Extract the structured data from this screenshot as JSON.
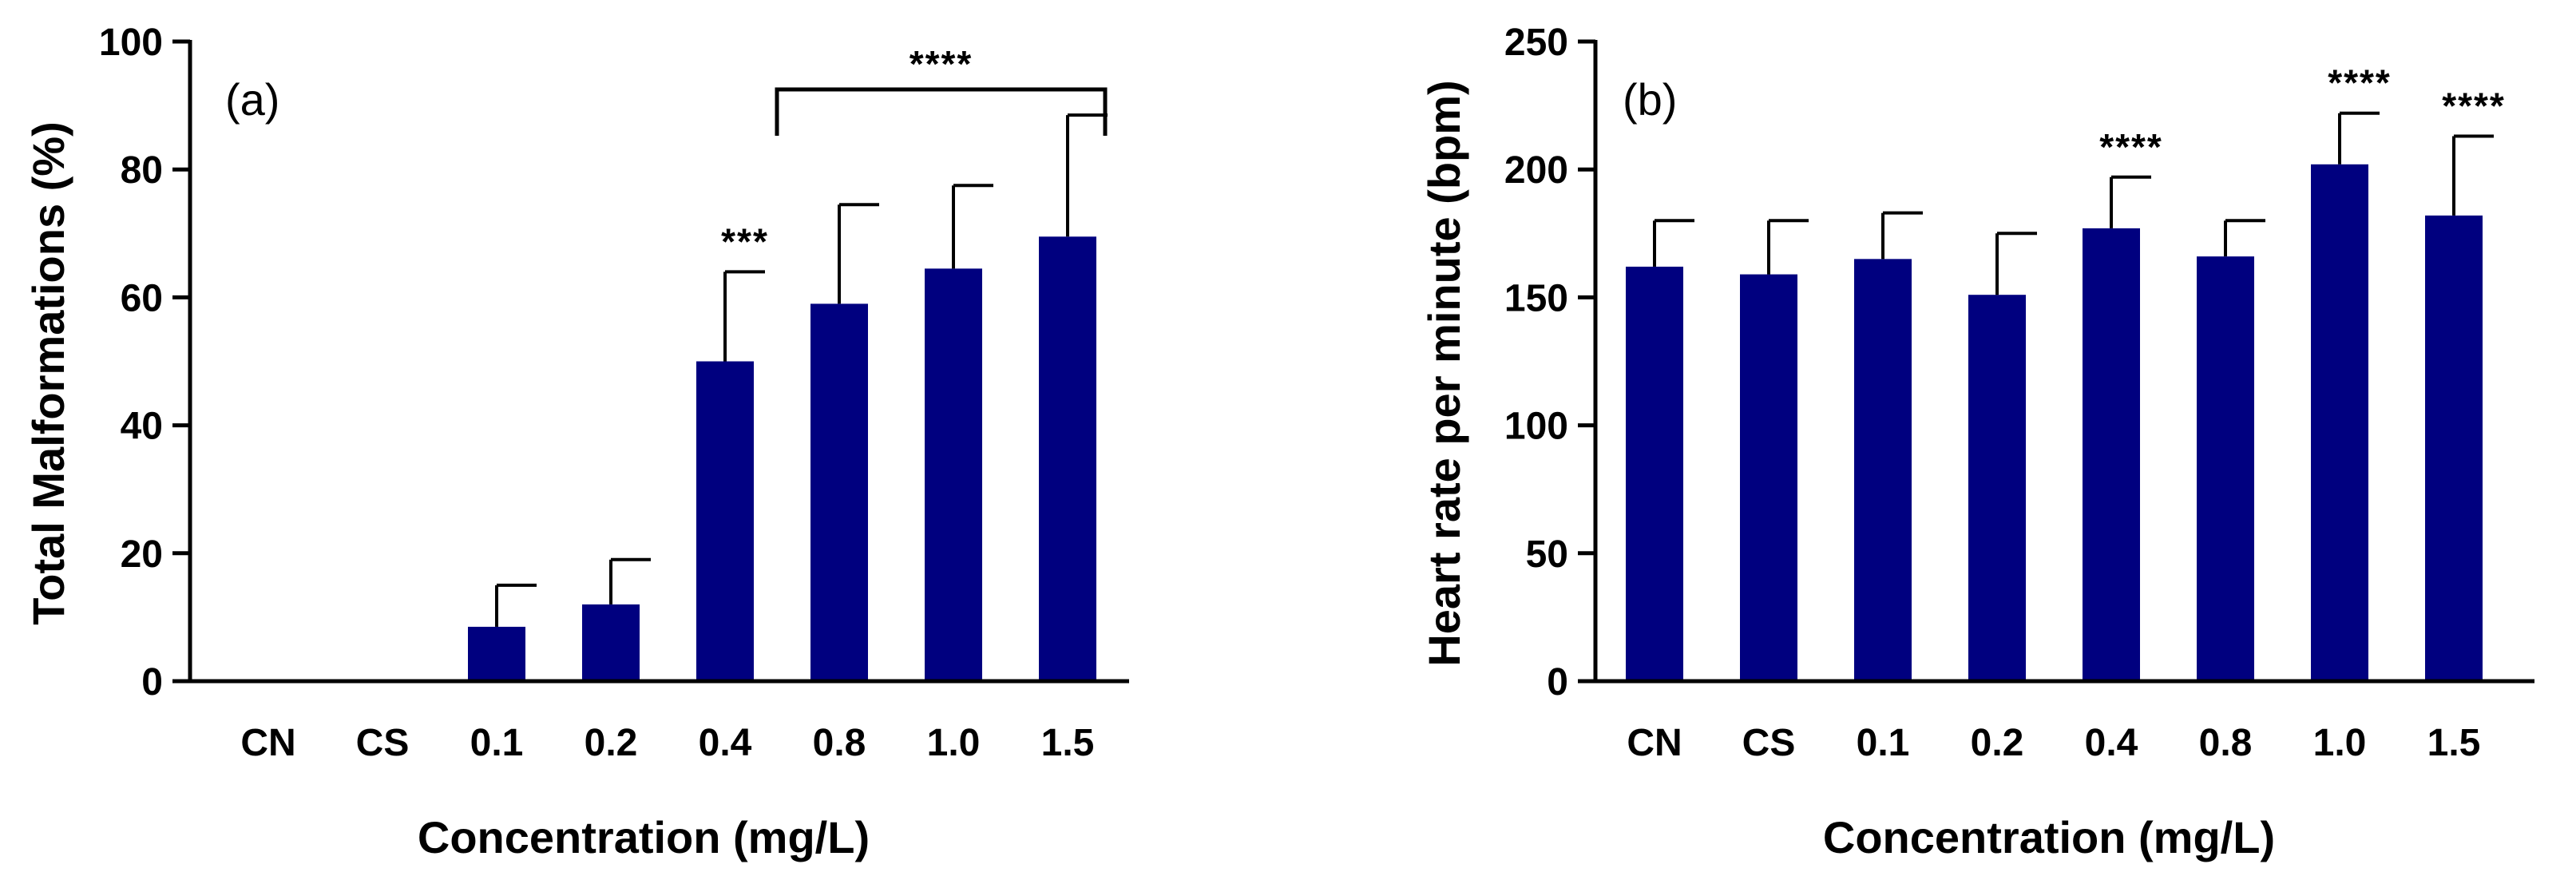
{
  "chart_data": [
    {
      "type": "bar",
      "panel_label": "(a)",
      "categories": [
        "CN",
        "CS",
        "0.1",
        "0.2",
        "0.4",
        "0.8",
        "1.0",
        "1.5"
      ],
      "values": [
        0,
        0,
        8.5,
        12,
        50,
        59,
        64.5,
        69.5
      ],
      "errors": [
        0,
        0,
        6.5,
        7,
        14,
        15.5,
        13,
        19
      ],
      "significance": [
        "",
        "",
        "",
        "",
        "***",
        "",
        "",
        ""
      ],
      "bracket": {
        "from_index": 5,
        "to_index": 7,
        "label": "****"
      },
      "xlabel": "Concentration (mg/L)",
      "ylabel": "Total Malformations (%)",
      "ylim": [
        0,
        100
      ],
      "yticks": [
        0,
        20,
        40,
        60,
        80,
        100
      ],
      "bar_color": "#00007f"
    },
    {
      "type": "bar",
      "panel_label": "(b)",
      "categories": [
        "CN",
        "CS",
        "0.1",
        "0.2",
        "0.4",
        "0.8",
        "1.0",
        "1.5"
      ],
      "values": [
        162,
        159,
        165,
        151,
        177,
        166,
        202,
        182
      ],
      "errors": [
        18,
        21,
        18,
        24,
        20,
        14,
        20,
        31
      ],
      "significance": [
        "",
        "",
        "",
        "",
        "****",
        "",
        "****",
        "****"
      ],
      "bracket": null,
      "xlabel": "Concentration (mg/L)",
      "ylabel": "Heart rate per minute (bpm)",
      "ylim": [
        0,
        250
      ],
      "yticks": [
        0,
        50,
        100,
        150,
        200,
        250
      ],
      "bar_color": "#00007f"
    }
  ]
}
